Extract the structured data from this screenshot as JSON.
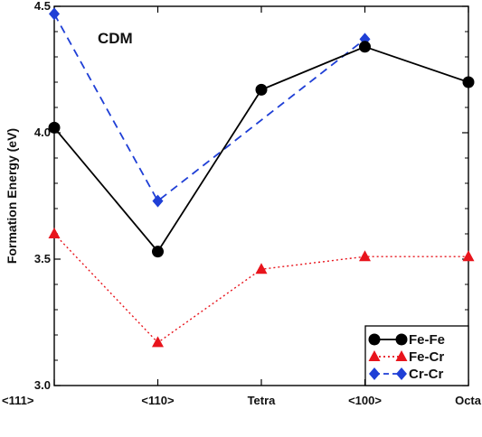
{
  "chart_data": {
    "type": "line",
    "title": "",
    "annotation": "CDM",
    "xlabel": "",
    "ylabel": "Formation Energy (eV)",
    "categories": [
      "<111>",
      "<110>",
      "Tetra",
      "<100>",
      "Octa"
    ],
    "ylim": [
      3.0,
      4.5
    ],
    "yticks": [
      "3.0",
      "3.5",
      "4.0",
      "4.5"
    ],
    "ytick_values": [
      3.0,
      3.5,
      4.0,
      4.5
    ],
    "grid": false,
    "legend_position": "bottom-right",
    "series": [
      {
        "name": "Fe-Fe",
        "values": [
          4.02,
          3.53,
          4.17,
          4.34,
          4.2
        ],
        "color": "#000000",
        "marker": "circle",
        "line": "solid"
      },
      {
        "name": "Fe-Cr",
        "values": [
          3.6,
          3.17,
          3.46,
          3.51,
          3.51
        ],
        "color": "#e8141c",
        "marker": "triangle",
        "line": "dotted"
      },
      {
        "name": "Cr-Cr",
        "values": [
          4.47,
          3.73,
          null,
          4.37,
          null
        ],
        "color": "#1f3fd6",
        "marker": "diamond",
        "line": "dashed"
      }
    ]
  }
}
